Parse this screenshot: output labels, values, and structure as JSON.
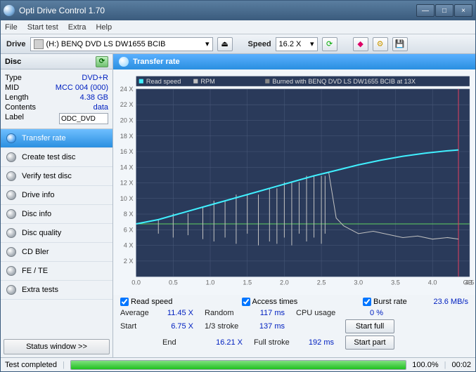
{
  "window": {
    "title": "Opti Drive Control 1.70"
  },
  "menu": [
    "File",
    "Start test",
    "Extra",
    "Help"
  ],
  "toolbar": {
    "drive_label": "Drive",
    "drive_value": "(H:)   BENQ DVD LS DW1655 BCIB",
    "speed_label": "Speed",
    "speed_value": "16.2 X"
  },
  "disc": {
    "header": "Disc",
    "rows": [
      {
        "k": "Type",
        "v": "DVD+R"
      },
      {
        "k": "MID",
        "v": "MCC 004 (000)"
      },
      {
        "k": "Length",
        "v": "4.38 GB"
      },
      {
        "k": "Contents",
        "v": "data"
      }
    ],
    "label_key": "Label",
    "label_value": "ODC_DVD"
  },
  "nav": [
    "Transfer rate",
    "Create test disc",
    "Verify test disc",
    "Drive info",
    "Disc info",
    "Disc quality",
    "CD Bler",
    "FE / TE",
    "Extra tests"
  ],
  "status_window": "Status window >>",
  "chart": {
    "title": "Transfer rate",
    "legend_read": "Read speed",
    "legend_rpm": "RPM",
    "legend_burned": "Burned with BENQ DVD LS DW1655 BCIB at 13X",
    "bg": "#2a3a5a",
    "grid": "#4a5a7a",
    "axis_text": "#c0c8d8",
    "read_color": "#40f0ff",
    "rpm_color": "#c0c0c0",
    "hline_color": "#60d060",
    "vline_color": "#e04060",
    "xmax": 4.5,
    "xstep": 0.5,
    "xunit": "GB",
    "ymax": 24,
    "ystep": 2,
    "yunit": "X",
    "hline_y": 6.75,
    "vline_x": 4.35,
    "read_curve": [
      [
        0.0,
        6.75
      ],
      [
        0.3,
        7.3
      ],
      [
        0.6,
        8.1
      ],
      [
        0.9,
        8.9
      ],
      [
        1.2,
        9.7
      ],
      [
        1.5,
        10.5
      ],
      [
        1.8,
        11.3
      ],
      [
        2.1,
        12.1
      ],
      [
        2.4,
        12.9
      ],
      [
        2.7,
        13.6
      ],
      [
        3.0,
        14.3
      ],
      [
        3.3,
        14.9
      ],
      [
        3.6,
        15.4
      ],
      [
        3.9,
        15.8
      ],
      [
        4.2,
        16.1
      ],
      [
        4.35,
        16.21
      ]
    ],
    "rpm_base": [
      [
        0.0,
        6.75
      ],
      [
        0.3,
        7.3
      ],
      [
        0.6,
        8.1
      ],
      [
        0.9,
        8.9
      ],
      [
        1.2,
        9.7
      ],
      [
        1.5,
        10.5
      ],
      [
        1.8,
        11.3
      ],
      [
        2.1,
        12.1
      ],
      [
        2.4,
        12.9
      ],
      [
        2.6,
        13.3
      ],
      [
        2.7,
        7.5
      ],
      [
        2.8,
        6.5
      ],
      [
        2.9,
        6.0
      ],
      [
        3.0,
        5.5
      ],
      [
        3.2,
        5.8
      ],
      [
        3.4,
        5.4
      ],
      [
        3.6,
        5.0
      ],
      [
        3.8,
        5.2
      ],
      [
        4.0,
        4.8
      ],
      [
        4.2,
        5.0
      ],
      [
        4.35,
        4.8
      ]
    ],
    "rpm_dips": [
      [
        0.3,
        5.5
      ],
      [
        0.5,
        5
      ],
      [
        0.7,
        5.3
      ],
      [
        0.9,
        4.8
      ],
      [
        1.05,
        4.5
      ],
      [
        1.2,
        5
      ],
      [
        1.35,
        4.2
      ],
      [
        1.5,
        5.5
      ],
      [
        1.65,
        4
      ],
      [
        1.8,
        4.5
      ],
      [
        1.9,
        4.2
      ],
      [
        2.0,
        5
      ],
      [
        2.1,
        4
      ],
      [
        2.2,
        5.5
      ],
      [
        2.3,
        4.5
      ],
      [
        2.4,
        5
      ],
      [
        2.5,
        4.2
      ],
      [
        2.55,
        5.5
      ]
    ]
  },
  "stats": {
    "chk_read": "Read speed",
    "chk_access": "Access times",
    "chk_burst": "Burst rate",
    "burst_value": "23.6 MB/s",
    "rows": [
      [
        "Average",
        "11.45 X",
        "Random",
        "117 ms",
        "CPU usage",
        "0 %"
      ],
      [
        "Start",
        "6.75 X",
        "1/3 stroke",
        "137 ms",
        "",
        ""
      ],
      [
        "End",
        "16.21 X",
        "Full stroke",
        "192 ms",
        "",
        ""
      ]
    ],
    "btn_full": "Start full",
    "btn_part": "Start part"
  },
  "statusbar": {
    "text": "Test completed",
    "percent": "100.0%",
    "time": "00:02",
    "progress_pct": 100
  }
}
